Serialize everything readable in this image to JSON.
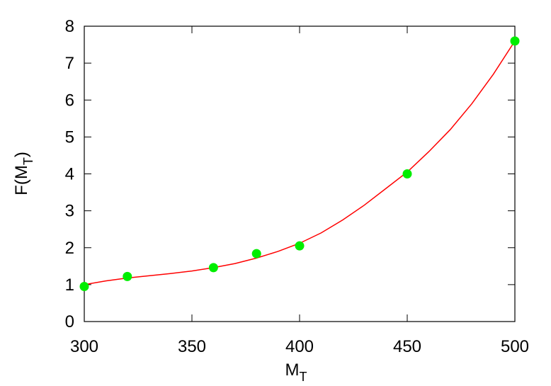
{
  "chart_data": {
    "type": "scatter",
    "xlabel": "M",
    "xlabel_sub": "T",
    "ylabel": "F(M",
    "ylabel_sub": "T",
    "ylabel_end": ")",
    "xlim": [
      300,
      500
    ],
    "xticks": [
      300,
      350,
      400,
      450,
      500
    ],
    "ylim": [
      0,
      8
    ],
    "yticks": [
      0,
      1,
      2,
      3,
      4,
      5,
      6,
      7,
      8
    ],
    "series": [
      {
        "type": "line",
        "color": "#ff0000",
        "x": [
          300,
          310,
          320,
          330,
          340,
          350,
          360,
          370,
          380,
          390,
          400,
          410,
          420,
          430,
          440,
          450,
          460,
          470,
          480,
          490,
          500
        ],
        "values": [
          1.0,
          1.1,
          1.18,
          1.24,
          1.3,
          1.37,
          1.46,
          1.57,
          1.72,
          1.9,
          2.12,
          2.4,
          2.75,
          3.15,
          3.6,
          4.05,
          4.6,
          5.2,
          5.9,
          6.7,
          7.6
        ]
      },
      {
        "type": "scatter",
        "color": "#00ee00",
        "x": [
          300,
          320,
          360,
          380,
          400,
          450,
          500
        ],
        "values": [
          0.95,
          1.22,
          1.46,
          1.84,
          2.05,
          4.0,
          7.6
        ]
      }
    ]
  }
}
